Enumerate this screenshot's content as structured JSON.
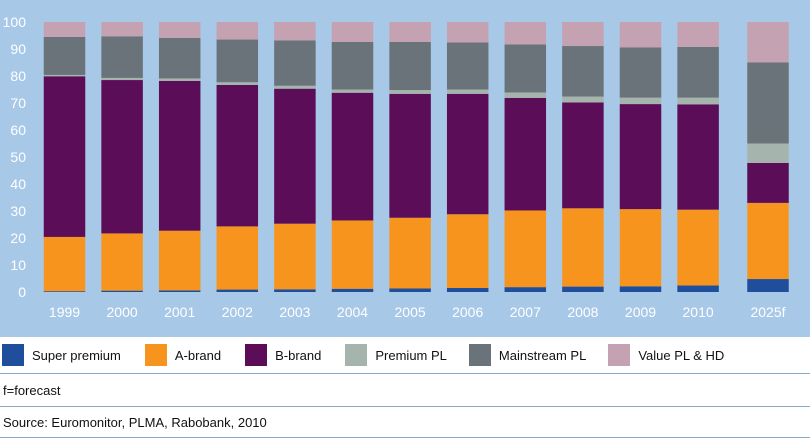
{
  "chart_data": {
    "type": "bar",
    "stacked": true,
    "categories": [
      "1999",
      "2000",
      "2001",
      "2002",
      "2003",
      "2004",
      "2005",
      "2006",
      "2007",
      "2008",
      "2009",
      "2010",
      "2025f"
    ],
    "ylim": [
      0,
      100
    ],
    "yticks": [
      0,
      10,
      20,
      30,
      40,
      50,
      60,
      70,
      80,
      90,
      100
    ],
    "series": [
      {
        "name": "Super premium",
        "color": "#1f4e9c",
        "values": [
          0.3,
          0.5,
          0.6,
          0.9,
          1.0,
          1.2,
          1.3,
          1.5,
          1.8,
          2.0,
          2.1,
          2.4,
          4.8
        ]
      },
      {
        "name": "A-brand",
        "color": "#f7941d",
        "values": [
          20.1,
          21.2,
          22.1,
          23.4,
          24.3,
          25.3,
          26.2,
          27.3,
          28.4,
          29.0,
          28.6,
          28.1,
          28.2
        ]
      },
      {
        "name": "B-brand",
        "color": "#5b0d57",
        "values": [
          59.5,
          56.8,
          55.5,
          52.4,
          50.0,
          47.3,
          45.9,
          44.6,
          41.7,
          39.2,
          38.9,
          39.0,
          14.8
        ]
      },
      {
        "name": "Premium PL",
        "color": "#a5b4ac",
        "values": [
          0.5,
          0.8,
          0.9,
          1.0,
          1.1,
          1.2,
          1.4,
          1.6,
          2.0,
          2.2,
          2.4,
          2.5,
          7.2
        ]
      },
      {
        "name": "Mainstream PL",
        "color": "#6a7379",
        "values": [
          14.1,
          15.4,
          15.0,
          15.8,
          16.8,
          17.6,
          17.8,
          17.4,
          17.8,
          18.7,
          18.6,
          18.8,
          30.0
        ]
      },
      {
        "name": "Value PL & HD",
        "color": "#c4a2b2",
        "values": [
          5.5,
          5.3,
          5.9,
          6.5,
          6.8,
          7.4,
          7.4,
          7.6,
          8.3,
          8.9,
          9.4,
          9.2,
          15.0
        ]
      }
    ]
  },
  "note": "f=forecast",
  "source": "Source: Euromonitor, PLMA, Rabobank, 2010"
}
